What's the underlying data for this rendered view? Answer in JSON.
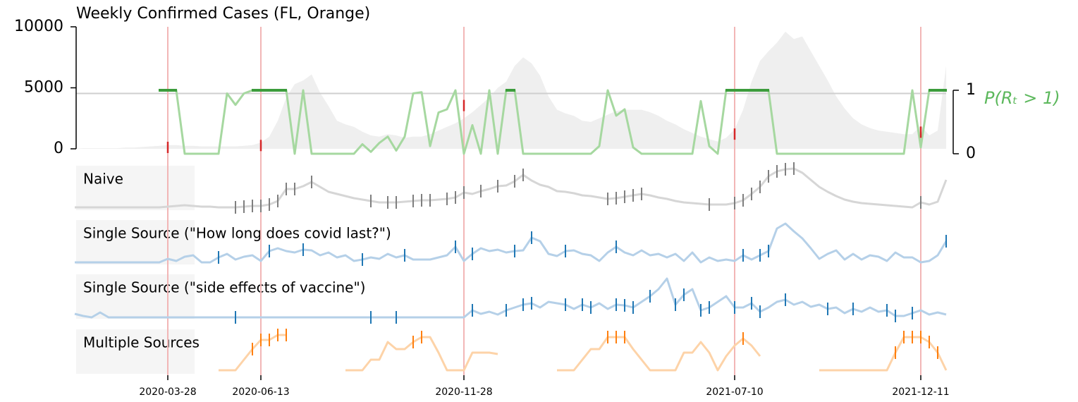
{
  "chart_data": {
    "type": "line",
    "title": "Weekly Confirmed Cases (FL, Orange)",
    "x": [
      "2020-01-11",
      "2020-01-18",
      "2020-01-25",
      "2020-02-01",
      "2020-02-08",
      "2020-02-15",
      "2020-02-22",
      "2020-02-29",
      "2020-03-07",
      "2020-03-14",
      "2020-03-21",
      "2020-03-28",
      "2020-04-04",
      "2020-04-11",
      "2020-04-18",
      "2020-04-25",
      "2020-05-02",
      "2020-05-09",
      "2020-05-16",
      "2020-05-23",
      "2020-05-30",
      "2020-06-06",
      "2020-06-13",
      "2020-06-20",
      "2020-06-27",
      "2020-07-04",
      "2020-07-11",
      "2020-07-18",
      "2020-07-25",
      "2020-08-01",
      "2020-08-08",
      "2020-08-15",
      "2020-08-22",
      "2020-08-29",
      "2020-09-05",
      "2020-09-12",
      "2020-09-19",
      "2020-09-26",
      "2020-10-03",
      "2020-10-10",
      "2020-10-17",
      "2020-10-24",
      "2020-10-31",
      "2020-11-07",
      "2020-11-14",
      "2020-11-21",
      "2020-11-28",
      "2020-12-05",
      "2020-12-12",
      "2020-12-19",
      "2020-12-26",
      "2021-01-02",
      "2021-01-09",
      "2021-01-16",
      "2021-01-23",
      "2021-01-30",
      "2021-02-06",
      "2021-02-13",
      "2021-02-20",
      "2021-02-27",
      "2021-03-06",
      "2021-03-13",
      "2021-03-20",
      "2021-03-27",
      "2021-04-03",
      "2021-04-10",
      "2021-04-17",
      "2021-04-24",
      "2021-05-01",
      "2021-05-08",
      "2021-05-15",
      "2021-05-22",
      "2021-05-29",
      "2021-06-05",
      "2021-06-12",
      "2021-06-19",
      "2021-06-26",
      "2021-07-03",
      "2021-07-10",
      "2021-07-17",
      "2021-07-24",
      "2021-07-31",
      "2021-08-07",
      "2021-08-14",
      "2021-08-21",
      "2021-08-28",
      "2021-09-04",
      "2021-09-11",
      "2021-09-18",
      "2021-09-25",
      "2021-10-02",
      "2021-10-09",
      "2021-10-16",
      "2021-10-23",
      "2021-10-30",
      "2021-11-06",
      "2021-11-13",
      "2021-11-20",
      "2021-11-27",
      "2021-12-04",
      "2021-12-11",
      "2021-12-18",
      "2021-12-25",
      "2022-01-01"
    ],
    "xlim": [
      "2020-01-11",
      "2022-01-01"
    ],
    "xticks": [
      "2020-03-28",
      "2020-06-13",
      "2020-11-28",
      "2021-07-10",
      "2021-12-11"
    ],
    "ylim": [
      0,
      10000
    ],
    "yticks": [
      0,
      5000,
      10000
    ],
    "y2lim": [
      0,
      1
    ],
    "y2ticks": [
      0,
      1
    ],
    "y2label": "P(Rₜ > 1)",
    "threshold": 0.95,
    "event_p": [
      0.1,
      0.13,
      0.76,
      0.31,
      0.34
    ],
    "event_color": "#d62728",
    "series": [
      {
        "color": "#efefef",
        "values": [
          0,
          50,
          50,
          50,
          50,
          50,
          100,
          100,
          150,
          200,
          250,
          300,
          300,
          250,
          250,
          200,
          200,
          200,
          200,
          200,
          250,
          300,
          500,
          1000,
          2300,
          4200,
          5300,
          5600,
          6100,
          4600,
          3500,
          2300,
          2000,
          1800,
          1400,
          1100,
          1000,
          1200,
          1100,
          900,
          1000,
          1000,
          1200,
          1500,
          1800,
          2100,
          2500,
          3000,
          3600,
          4200,
          5000,
          5500,
          6800,
          7500,
          7000,
          6000,
          4300,
          3200,
          2900,
          2700,
          2300,
          2200,
          2500,
          2800,
          3100,
          3200,
          3200,
          3200,
          3000,
          2700,
          2300,
          2000,
          1600,
          1300,
          1000,
          800,
          600,
          900,
          1600,
          3200,
          5500,
          7200,
          8000,
          8700,
          9600,
          9000,
          9200,
          8000,
          6800,
          5600,
          4300,
          3300,
          2500,
          2000,
          1700,
          1500,
          1400,
          1300,
          1200,
          1200,
          1900,
          1100,
          1500,
          6800
        ]
      },
      {
        "color": "#a6d8a0",
        "peak_color": "#3c9c3c",
        "axis": "y2",
        "values": [
          null,
          null,
          null,
          null,
          null,
          null,
          null,
          null,
          null,
          null,
          1,
          1,
          1,
          0,
          0,
          0,
          0,
          0,
          0.95,
          0.77,
          0.95,
          1,
          1,
          1,
          1,
          1,
          0,
          1,
          0,
          0,
          0,
          0,
          0,
          0,
          0.15,
          0.03,
          0.17,
          0.27,
          0.05,
          0.27,
          0.95,
          0.97,
          0.12,
          0.65,
          0.7,
          1,
          0,
          0.45,
          0,
          1,
          0,
          1,
          1,
          0,
          0,
          0,
          0,
          0,
          0,
          0,
          0,
          0,
          0.12,
          1,
          0.6,
          0.7,
          0.1,
          0,
          0,
          0,
          0,
          0,
          0,
          0,
          0.83,
          0.12,
          0,
          1,
          1,
          1,
          1,
          1,
          1,
          0,
          0,
          0,
          0,
          0,
          0,
          0,
          0,
          0,
          0,
          0,
          0,
          0,
          0,
          0,
          0,
          1,
          0.1,
          1,
          1,
          1
        ]
      }
    ],
    "panels": [
      {
        "title": "Naive",
        "color": "#d6d6d6",
        "tick_color": "#7f7f7f",
        "ylim": [
          0,
          65
        ],
        "values": [
          6,
          6,
          6,
          6,
          6,
          6,
          6,
          6,
          6,
          6,
          6,
          7,
          8,
          9,
          8,
          7,
          7,
          6,
          6,
          6,
          7,
          8,
          8,
          10,
          15,
          32,
          32,
          36,
          42,
          35,
          28,
          25,
          22,
          19,
          17,
          15,
          13,
          13,
          13,
          14,
          15,
          16,
          16,
          17,
          18,
          20,
          27,
          25,
          29,
          32,
          36,
          37,
          43,
          52,
          44,
          38,
          35,
          29,
          28,
          26,
          23,
          22,
          20,
          18,
          19,
          21,
          23,
          25,
          23,
          20,
          18,
          15,
          13,
          12,
          11,
          10,
          10,
          10,
          12,
          16,
          25,
          35,
          50,
          57,
          60,
          61,
          55,
          45,
          35,
          28,
          22,
          17,
          14,
          12,
          11,
          10,
          9,
          8,
          7,
          6,
          13,
          10,
          14,
          45
        ],
        "detections": [
          "2020-05-23",
          "2020-05-30",
          "2020-06-06",
          "2020-06-13",
          "2020-06-20",
          "2020-06-27",
          "2020-07-04",
          "2020-07-11",
          "2020-07-25",
          "2020-09-12",
          "2020-09-26",
          "2020-10-03",
          "2020-10-17",
          "2020-10-24",
          "2020-10-31",
          "2020-11-14",
          "2020-11-21",
          "2020-11-28",
          "2020-12-12",
          "2020-12-26",
          "2021-01-09",
          "2021-01-16",
          "2021-03-27",
          "2021-04-03",
          "2021-04-10",
          "2021-04-17",
          "2021-04-24",
          "2021-06-19",
          "2021-07-10",
          "2021-07-17",
          "2021-07-24",
          "2021-07-31",
          "2021-08-07",
          "2021-08-14",
          "2021-08-21",
          "2021-08-28",
          "2021-12-11"
        ]
      },
      {
        "title": "Single Source (\"How long does covid last?\")",
        "color": "#b5d0e8",
        "tick_color": "#1f77b4",
        "ylim": [
          0,
          65
        ],
        "values": [
          5,
          5,
          5,
          5,
          5,
          5,
          5,
          5,
          5,
          5,
          5,
          10,
          7,
          13,
          15,
          5,
          5,
          12,
          17,
          9,
          13,
          15,
          7,
          21,
          25,
          21,
          19,
          23,
          22,
          15,
          19,
          12,
          15,
          7,
          9,
          12,
          10,
          17,
          12,
          15,
          9,
          9,
          9,
          12,
          15,
          27,
          7,
          17,
          25,
          21,
          23,
          19,
          21,
          22,
          40,
          35,
          17,
          14,
          21,
          22,
          17,
          15,
          7,
          19,
          27,
          19,
          15,
          22,
          15,
          17,
          12,
          17,
          7,
          19,
          5,
          12,
          7,
          9,
          7,
          15,
          9,
          15,
          21,
          53,
          60,
          49,
          39,
          25,
          10,
          17,
          22,
          9,
          17,
          9,
          15,
          13,
          7,
          19,
          12,
          12,
          5,
          7,
          15,
          35
        ],
        "detections": [
          "2020-05-09",
          "2020-06-20",
          "2020-07-18",
          "2020-09-05",
          "2020-10-10",
          "2020-11-21",
          "2020-12-05",
          "2021-01-09",
          "2021-01-23",
          "2021-02-20",
          "2021-04-03",
          "2021-07-17",
          "2021-07-31",
          "2021-08-07",
          "2022-01-01"
        ]
      },
      {
        "title": "Single Source (\"side effects of vaccine\")",
        "color": "#b5d0e8",
        "tick_color": "#1f77b4",
        "ylim": [
          0,
          65
        ],
        "values": [
          9,
          6,
          4,
          11,
          4,
          4,
          4,
          4,
          4,
          4,
          4,
          4,
          4,
          4,
          4,
          4,
          4,
          4,
          4,
          4,
          4,
          4,
          4,
          4,
          4,
          4,
          4,
          4,
          4,
          4,
          4,
          4,
          4,
          4,
          4,
          4,
          4,
          4,
          4,
          4,
          4,
          4,
          4,
          4,
          4,
          4,
          4,
          14,
          9,
          12,
          8,
          14,
          18,
          22,
          24,
          18,
          26,
          24,
          22,
          16,
          22,
          18,
          24,
          16,
          22,
          21,
          18,
          26,
          34,
          44,
          59,
          22,
          36,
          44,
          14,
          18,
          26,
          34,
          18,
          18,
          24,
          12,
          18,
          26,
          29,
          22,
          26,
          19,
          22,
          16,
          18,
          10,
          16,
          12,
          18,
          12,
          14,
          6,
          6,
          10,
          14,
          8,
          11,
          8
        ],
        "detections": [
          "2020-05-23",
          "2020-09-12",
          "2020-10-03",
          "2020-12-05",
          "2021-01-02",
          "2021-01-16",
          "2021-01-23",
          "2021-02-20",
          "2021-03-06",
          "2021-03-13",
          "2021-04-03",
          "2021-04-10",
          "2021-04-17",
          "2021-05-01",
          "2021-05-22",
          "2021-05-29",
          "2021-06-12",
          "2021-06-19",
          "2021-07-10",
          "2021-07-24",
          "2021-07-31",
          "2021-08-21",
          "2021-09-25",
          "2021-10-16",
          "2021-11-13",
          "2021-11-20",
          "2021-12-04"
        ]
      },
      {
        "title": "Multiple Sources",
        "color": "#fdd3a8",
        "tick_color": "#ff7f0e",
        "ylim": [
          0,
          65
        ],
        "values": [
          null,
          null,
          null,
          null,
          null,
          null,
          null,
          null,
          null,
          null,
          null,
          null,
          null,
          null,
          null,
          null,
          null,
          7,
          7,
          7,
          22,
          37,
          50,
          50,
          57,
          57,
          null,
          null,
          null,
          null,
          null,
          null,
          7,
          7,
          7,
          22,
          22,
          47,
          37,
          37,
          47,
          54,
          54,
          32,
          7,
          7,
          7,
          32,
          32,
          32,
          30,
          null,
          null,
          null,
          null,
          null,
          null,
          7,
          7,
          7,
          22,
          37,
          37,
          54,
          54,
          54,
          37,
          22,
          7,
          7,
          7,
          7,
          32,
          32,
          47,
          32,
          7,
          27,
          42,
          52,
          42,
          27,
          null,
          null,
          null,
          null,
          null,
          null,
          7,
          7,
          7,
          7,
          7,
          7,
          7,
          7,
          7,
          32,
          54,
          54,
          54,
          47,
          32,
          7
        ],
        "detections": [
          "2020-06-06",
          "2020-06-13",
          "2020-06-20",
          "2020-06-27",
          "2020-07-04",
          "2020-10-17",
          "2020-10-24",
          "2021-03-27",
          "2021-04-03",
          "2021-04-10",
          "2021-07-17",
          "2021-11-20",
          "2021-11-27",
          "2021-12-04",
          "2021-12-11",
          "2021-12-18",
          "2021-12-25"
        ]
      }
    ]
  }
}
